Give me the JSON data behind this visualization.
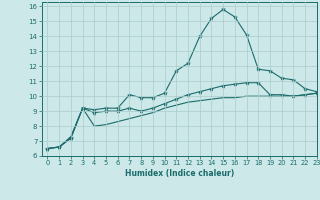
{
  "xlabel": "Humidex (Indice chaleur)",
  "background_color": "#cde8e8",
  "grid_color": "#aacccc",
  "line_color": "#1a6b6b",
  "xlim": [
    -0.5,
    23
  ],
  "ylim": [
    6,
    16.3
  ],
  "x": [
    0,
    1,
    2,
    3,
    4,
    5,
    6,
    7,
    8,
    9,
    10,
    11,
    12,
    13,
    14,
    15,
    16,
    17,
    18,
    19,
    20,
    21,
    22,
    23
  ],
  "line1": [
    6.5,
    6.6,
    7.2,
    9.2,
    9.1,
    9.2,
    9.2,
    10.1,
    9.9,
    9.9,
    10.2,
    11.7,
    12.2,
    14.0,
    15.2,
    15.8,
    15.3,
    14.1,
    11.8,
    11.7,
    11.2,
    11.1,
    10.5,
    10.3
  ],
  "line2": [
    6.5,
    6.6,
    7.2,
    9.2,
    8.9,
    9.0,
    9.0,
    9.2,
    9.0,
    9.2,
    9.5,
    9.8,
    10.1,
    10.3,
    10.5,
    10.7,
    10.8,
    10.9,
    10.9,
    10.1,
    10.1,
    10.0,
    10.1,
    10.2
  ],
  "line3": [
    6.5,
    6.6,
    7.3,
    9.2,
    8.0,
    8.1,
    8.3,
    8.5,
    8.7,
    8.9,
    9.2,
    9.4,
    9.6,
    9.7,
    9.8,
    9.9,
    9.9,
    10.0,
    10.0,
    10.0,
    10.0,
    10.0,
    10.1,
    10.2
  ],
  "yticks": [
    6,
    7,
    8,
    9,
    10,
    11,
    12,
    13,
    14,
    15,
    16
  ],
  "xticks": [
    0,
    1,
    2,
    3,
    4,
    5,
    6,
    7,
    8,
    9,
    10,
    11,
    12,
    13,
    14,
    15,
    16,
    17,
    18,
    19,
    20,
    21,
    22,
    23
  ]
}
